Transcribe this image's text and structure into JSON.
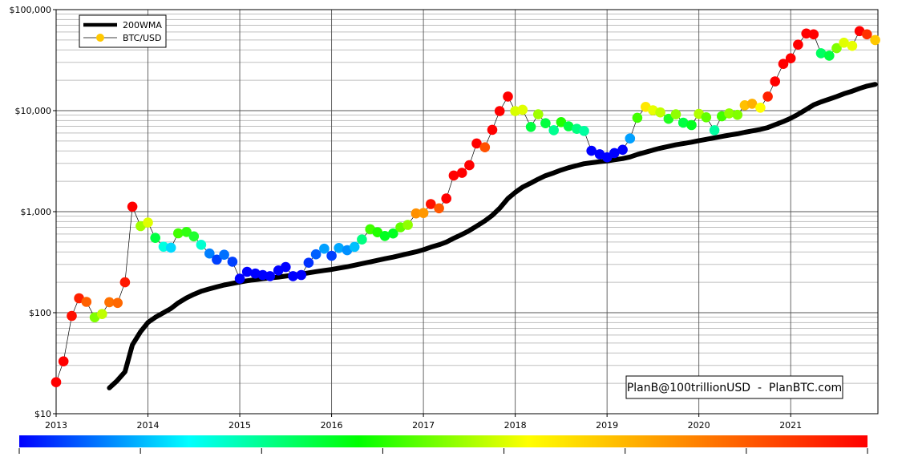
{
  "chart_data": {
    "type": "scatter",
    "title": "",
    "xlabel": "",
    "ylabel": "",
    "y_scale": "log",
    "ylim": [
      10,
      100000
    ],
    "xlim": [
      2013.0,
      2021.95
    ],
    "grid": true,
    "legend_position": "top-left",
    "legend": {
      "entries": [
        {
          "name": "200WMA",
          "color": "#000000"
        },
        {
          "name": "BTC/USD",
          "color": "#ffc800"
        }
      ]
    },
    "credit": "PlanB@100trillionUSD  -  PlanBTC.com",
    "y_ticks": [
      {
        "value": 10,
        "label": "$10"
      },
      {
        "value": 100,
        "label": "$100"
      },
      {
        "value": 1000,
        "label": "$1,000"
      },
      {
        "value": 10000,
        "label": "$10,000"
      },
      {
        "value": 100000,
        "label": "$100,000"
      }
    ],
    "x_ticks": [
      {
        "value": 2013,
        "label": "2013"
      },
      {
        "value": 2014,
        "label": "2014"
      },
      {
        "value": 2015,
        "label": "2015"
      },
      {
        "value": 2016,
        "label": "2016"
      },
      {
        "value": 2017,
        "label": "2017"
      },
      {
        "value": 2018,
        "label": "2018"
      },
      {
        "value": 2019,
        "label": "2019"
      },
      {
        "value": 2020,
        "label": "2020"
      },
      {
        "value": 2021,
        "label": "2021"
      }
    ],
    "colorbar": {
      "stops": [
        "#0000ff",
        "#00ffff",
        "#00ff00",
        "#ffff00",
        "#ff8000",
        "#ff0000"
      ]
    },
    "series": [
      {
        "name": "200WMA",
        "kind": "line",
        "color": "#000000",
        "points": [
          [
            2013.58,
            18
          ],
          [
            2013.66,
            21
          ],
          [
            2013.75,
            26
          ],
          [
            2013.83,
            48
          ],
          [
            2013.92,
            65
          ],
          [
            2014.0,
            80
          ],
          [
            2014.08,
            90
          ],
          [
            2014.17,
            100
          ],
          [
            2014.25,
            110
          ],
          [
            2014.33,
            125
          ],
          [
            2014.42,
            140
          ],
          [
            2014.5,
            152
          ],
          [
            2014.58,
            163
          ],
          [
            2014.67,
            172
          ],
          [
            2014.75,
            180
          ],
          [
            2014.83,
            188
          ],
          [
            2014.92,
            195
          ],
          [
            2015.0,
            201
          ],
          [
            2015.08,
            207
          ],
          [
            2015.17,
            212
          ],
          [
            2015.25,
            217
          ],
          [
            2015.33,
            221
          ],
          [
            2015.42,
            225
          ],
          [
            2015.5,
            230
          ],
          [
            2015.58,
            235
          ],
          [
            2015.67,
            241
          ],
          [
            2015.75,
            248
          ],
          [
            2015.83,
            255
          ],
          [
            2015.92,
            262
          ],
          [
            2016.0,
            268
          ],
          [
            2016.08,
            276
          ],
          [
            2016.17,
            285
          ],
          [
            2016.25,
            295
          ],
          [
            2016.33,
            306
          ],
          [
            2016.42,
            318
          ],
          [
            2016.5,
            330
          ],
          [
            2016.58,
            342
          ],
          [
            2016.67,
            355
          ],
          [
            2016.75,
            369
          ],
          [
            2016.83,
            384
          ],
          [
            2016.92,
            400
          ],
          [
            2017.0,
            420
          ],
          [
            2017.08,
            445
          ],
          [
            2017.17,
            470
          ],
          [
            2017.25,
            500
          ],
          [
            2017.33,
            545
          ],
          [
            2017.42,
            595
          ],
          [
            2017.5,
            650
          ],
          [
            2017.58,
            720
          ],
          [
            2017.67,
            810
          ],
          [
            2017.75,
            920
          ],
          [
            2017.83,
            1080
          ],
          [
            2017.92,
            1350
          ],
          [
            2018.0,
            1550
          ],
          [
            2018.08,
            1750
          ],
          [
            2018.17,
            1920
          ],
          [
            2018.25,
            2100
          ],
          [
            2018.33,
            2270
          ],
          [
            2018.42,
            2420
          ],
          [
            2018.5,
            2580
          ],
          [
            2018.58,
            2720
          ],
          [
            2018.67,
            2860
          ],
          [
            2018.75,
            2980
          ],
          [
            2018.83,
            3050
          ],
          [
            2018.92,
            3120
          ],
          [
            2019.0,
            3180
          ],
          [
            2019.08,
            3260
          ],
          [
            2019.17,
            3350
          ],
          [
            2019.25,
            3480
          ],
          [
            2019.33,
            3680
          ],
          [
            2019.42,
            3880
          ],
          [
            2019.5,
            4070
          ],
          [
            2019.58,
            4250
          ],
          [
            2019.67,
            4430
          ],
          [
            2019.75,
            4590
          ],
          [
            2019.83,
            4720
          ],
          [
            2019.92,
            4880
          ],
          [
            2020.0,
            5050
          ],
          [
            2020.08,
            5200
          ],
          [
            2020.17,
            5380
          ],
          [
            2020.25,
            5550
          ],
          [
            2020.33,
            5730
          ],
          [
            2020.42,
            5900
          ],
          [
            2020.5,
            6100
          ],
          [
            2020.58,
            6300
          ],
          [
            2020.67,
            6520
          ],
          [
            2020.75,
            6800
          ],
          [
            2020.83,
            7250
          ],
          [
            2020.92,
            7800
          ],
          [
            2021.0,
            8400
          ],
          [
            2021.08,
            9200
          ],
          [
            2021.17,
            10300
          ],
          [
            2021.25,
            11400
          ],
          [
            2021.33,
            12200
          ],
          [
            2021.42,
            13000
          ],
          [
            2021.5,
            13800
          ],
          [
            2021.58,
            14700
          ],
          [
            2021.67,
            15600
          ],
          [
            2021.75,
            16600
          ],
          [
            2021.83,
            17500
          ],
          [
            2021.92,
            18200
          ]
        ]
      },
      {
        "name": "BTC/USD",
        "kind": "scatter",
        "points": [
          {
            "x": 2013.0,
            "y": 20.5,
            "color": "#ff0000"
          },
          {
            "x": 2013.08,
            "y": 33,
            "color": "#ff0000"
          },
          {
            "x": 2013.17,
            "y": 93,
            "color": "#ff1000"
          },
          {
            "x": 2013.25,
            "y": 139,
            "color": "#ff2000"
          },
          {
            "x": 2013.33,
            "y": 128,
            "color": "#ff6000"
          },
          {
            "x": 2013.42,
            "y": 90,
            "color": "#80ff00"
          },
          {
            "x": 2013.5,
            "y": 97,
            "color": "#c0ff00"
          },
          {
            "x": 2013.58,
            "y": 127,
            "color": "#ff7000"
          },
          {
            "x": 2013.67,
            "y": 125,
            "color": "#ff6800"
          },
          {
            "x": 2013.75,
            "y": 200,
            "color": "#ff1800"
          },
          {
            "x": 2013.83,
            "y": 1120,
            "color": "#ff0000"
          },
          {
            "x": 2013.92,
            "y": 720,
            "color": "#a0ff00"
          },
          {
            "x": 2014.0,
            "y": 780,
            "color": "#e0ff00"
          },
          {
            "x": 2014.08,
            "y": 550,
            "color": "#00ff40"
          },
          {
            "x": 2014.17,
            "y": 450,
            "color": "#00ffe0"
          },
          {
            "x": 2014.25,
            "y": 440,
            "color": "#00d8ff"
          },
          {
            "x": 2014.33,
            "y": 610,
            "color": "#40ff00"
          },
          {
            "x": 2014.42,
            "y": 630,
            "color": "#30ff10"
          },
          {
            "x": 2014.5,
            "y": 570,
            "color": "#20ff30"
          },
          {
            "x": 2014.58,
            "y": 470,
            "color": "#00ffd0"
          },
          {
            "x": 2014.67,
            "y": 385,
            "color": "#0080ff"
          },
          {
            "x": 2014.75,
            "y": 335,
            "color": "#0040ff"
          },
          {
            "x": 2014.83,
            "y": 375,
            "color": "#0070ff"
          },
          {
            "x": 2014.92,
            "y": 320,
            "color": "#0040ff"
          },
          {
            "x": 2015.0,
            "y": 217,
            "color": "#0000ff"
          },
          {
            "x": 2015.08,
            "y": 254,
            "color": "#0000ff"
          },
          {
            "x": 2015.17,
            "y": 244,
            "color": "#0000ff"
          },
          {
            "x": 2015.25,
            "y": 236,
            "color": "#0000ff"
          },
          {
            "x": 2015.33,
            "y": 230,
            "color": "#0000ff"
          },
          {
            "x": 2015.42,
            "y": 262,
            "color": "#0000ff"
          },
          {
            "x": 2015.5,
            "y": 283,
            "color": "#0000ff"
          },
          {
            "x": 2015.58,
            "y": 230,
            "color": "#0000ff"
          },
          {
            "x": 2015.67,
            "y": 236,
            "color": "#0000ff"
          },
          {
            "x": 2015.75,
            "y": 312,
            "color": "#0030ff"
          },
          {
            "x": 2015.83,
            "y": 378,
            "color": "#0060ff"
          },
          {
            "x": 2015.92,
            "y": 430,
            "color": "#00a0ff"
          },
          {
            "x": 2016.0,
            "y": 366,
            "color": "#0040ff"
          },
          {
            "x": 2016.08,
            "y": 437,
            "color": "#00a8ff"
          },
          {
            "x": 2016.17,
            "y": 415,
            "color": "#0090ff"
          },
          {
            "x": 2016.25,
            "y": 448,
            "color": "#00c0ff"
          },
          {
            "x": 2016.33,
            "y": 530,
            "color": "#00ff80"
          },
          {
            "x": 2016.42,
            "y": 670,
            "color": "#40ff00"
          },
          {
            "x": 2016.5,
            "y": 625,
            "color": "#20ff00"
          },
          {
            "x": 2016.58,
            "y": 575,
            "color": "#00ff20"
          },
          {
            "x": 2016.67,
            "y": 608,
            "color": "#00ff20"
          },
          {
            "x": 2016.75,
            "y": 700,
            "color": "#60ff00"
          },
          {
            "x": 2016.83,
            "y": 740,
            "color": "#90ff00"
          },
          {
            "x": 2016.92,
            "y": 960,
            "color": "#ff9000"
          },
          {
            "x": 2017.0,
            "y": 970,
            "color": "#ff9800"
          },
          {
            "x": 2017.08,
            "y": 1190,
            "color": "#ff1000"
          },
          {
            "x": 2017.17,
            "y": 1080,
            "color": "#ff5800"
          },
          {
            "x": 2017.25,
            "y": 1350,
            "color": "#ff0000"
          },
          {
            "x": 2017.33,
            "y": 2280,
            "color": "#ff0000"
          },
          {
            "x": 2017.42,
            "y": 2420,
            "color": "#ff0000"
          },
          {
            "x": 2017.5,
            "y": 2880,
            "color": "#ff0000"
          },
          {
            "x": 2017.58,
            "y": 4740,
            "color": "#ff0000"
          },
          {
            "x": 2017.67,
            "y": 4340,
            "color": "#ff5000"
          },
          {
            "x": 2017.75,
            "y": 6460,
            "color": "#ff0000"
          },
          {
            "x": 2017.83,
            "y": 9900,
            "color": "#ff0000"
          },
          {
            "x": 2017.92,
            "y": 13800,
            "color": "#ff0000"
          },
          {
            "x": 2018.0,
            "y": 9900,
            "color": "#d8ff00"
          },
          {
            "x": 2018.08,
            "y": 10200,
            "color": "#e0ff00"
          },
          {
            "x": 2018.17,
            "y": 6900,
            "color": "#00ff40"
          },
          {
            "x": 2018.25,
            "y": 9200,
            "color": "#a0ff00"
          },
          {
            "x": 2018.33,
            "y": 7500,
            "color": "#00ff40"
          },
          {
            "x": 2018.42,
            "y": 6400,
            "color": "#00ff90"
          },
          {
            "x": 2018.5,
            "y": 7700,
            "color": "#20ff00"
          },
          {
            "x": 2018.58,
            "y": 7000,
            "color": "#00ff40"
          },
          {
            "x": 2018.67,
            "y": 6600,
            "color": "#00ff80"
          },
          {
            "x": 2018.75,
            "y": 6300,
            "color": "#00ffa0"
          },
          {
            "x": 2018.83,
            "y": 4000,
            "color": "#0000ff"
          },
          {
            "x": 2018.92,
            "y": 3700,
            "color": "#0000ff"
          },
          {
            "x": 2019.0,
            "y": 3450,
            "color": "#0000ff"
          },
          {
            "x": 2019.08,
            "y": 3800,
            "color": "#0000ff"
          },
          {
            "x": 2019.17,
            "y": 4100,
            "color": "#0000ff"
          },
          {
            "x": 2019.25,
            "y": 5300,
            "color": "#00a0ff"
          },
          {
            "x": 2019.33,
            "y": 8500,
            "color": "#40ff00"
          },
          {
            "x": 2019.42,
            "y": 10900,
            "color": "#ffe800"
          },
          {
            "x": 2019.5,
            "y": 10100,
            "color": "#e8ff00"
          },
          {
            "x": 2019.58,
            "y": 9600,
            "color": "#c0ff00"
          },
          {
            "x": 2019.67,
            "y": 8300,
            "color": "#20ff20"
          },
          {
            "x": 2019.75,
            "y": 9200,
            "color": "#90ff00"
          },
          {
            "x": 2019.83,
            "y": 7600,
            "color": "#00ff40"
          },
          {
            "x": 2019.92,
            "y": 7200,
            "color": "#00ff20"
          },
          {
            "x": 2020.0,
            "y": 9300,
            "color": "#b0ff00"
          },
          {
            "x": 2020.08,
            "y": 8600,
            "color": "#60ff00"
          },
          {
            "x": 2020.17,
            "y": 6400,
            "color": "#00ffa0"
          },
          {
            "x": 2020.25,
            "y": 8800,
            "color": "#40ff00"
          },
          {
            "x": 2020.33,
            "y": 9400,
            "color": "#90ff00"
          },
          {
            "x": 2020.42,
            "y": 9100,
            "color": "#80ff00"
          },
          {
            "x": 2020.5,
            "y": 11300,
            "color": "#ffc000"
          },
          {
            "x": 2020.58,
            "y": 11700,
            "color": "#ffb000"
          },
          {
            "x": 2020.67,
            "y": 10700,
            "color": "#ffff00"
          },
          {
            "x": 2020.75,
            "y": 13800,
            "color": "#ff2000"
          },
          {
            "x": 2020.83,
            "y": 19500,
            "color": "#ff0000"
          },
          {
            "x": 2020.92,
            "y": 29000,
            "color": "#ff0000"
          },
          {
            "x": 2021.0,
            "y": 33000,
            "color": "#ff0000"
          },
          {
            "x": 2021.08,
            "y": 45000,
            "color": "#ff0000"
          },
          {
            "x": 2021.17,
            "y": 58000,
            "color": "#ff0000"
          },
          {
            "x": 2021.25,
            "y": 57000,
            "color": "#ff0000"
          },
          {
            "x": 2021.33,
            "y": 37000,
            "color": "#00ff60"
          },
          {
            "x": 2021.42,
            "y": 35000,
            "color": "#00ff40"
          },
          {
            "x": 2021.5,
            "y": 41500,
            "color": "#80ff00"
          },
          {
            "x": 2021.58,
            "y": 47000,
            "color": "#e0ff00"
          },
          {
            "x": 2021.67,
            "y": 43800,
            "color": "#e8ff00"
          },
          {
            "x": 2021.75,
            "y": 61300,
            "color": "#ff0000"
          },
          {
            "x": 2021.83,
            "y": 57000,
            "color": "#ff3000"
          },
          {
            "x": 2021.92,
            "y": 50000,
            "color": "#ffc800"
          }
        ]
      }
    ]
  }
}
